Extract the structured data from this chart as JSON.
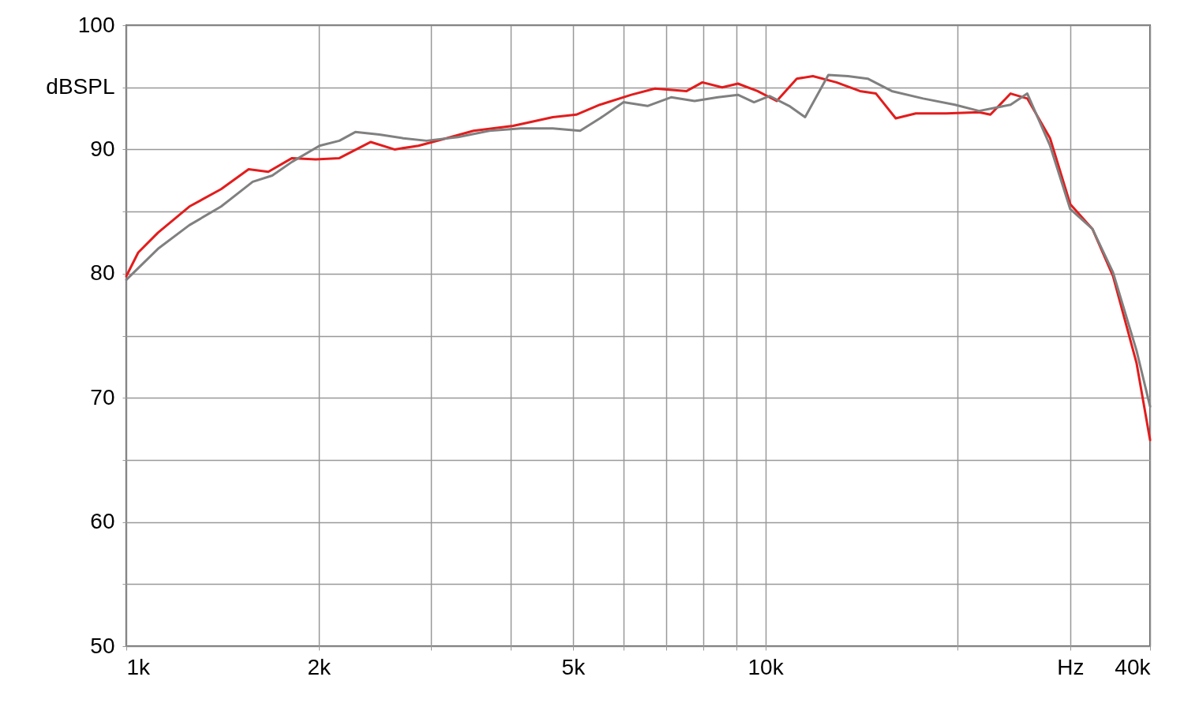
{
  "chart_data": {
    "type": "line",
    "log": "x",
    "grid": true,
    "legend": false,
    "marker": "none",
    "line_style": "solid",
    "xlim": [
      1000,
      40000
    ],
    "xticks": [
      {
        "value": 1000,
        "label": "1k"
      },
      {
        "value": 2000,
        "label": "2k"
      },
      {
        "value": 3000,
        "label": null
      },
      {
        "value": 4000,
        "label": null
      },
      {
        "value": 5000,
        "label": "5k"
      },
      {
        "value": 6000,
        "label": null
      },
      {
        "value": 7000,
        "label": null
      },
      {
        "value": 8000,
        "label": null
      },
      {
        "value": 9000,
        "label": null
      },
      {
        "value": 10000,
        "label": "10k"
      },
      {
        "value": 20000,
        "label": null
      },
      {
        "value": 30000,
        "label": "Hz"
      },
      {
        "value": 40000,
        "label": "40k"
      }
    ],
    "ylim": [
      50,
      100
    ],
    "yticks": [
      50,
      {
        "value": 55,
        "label": null
      },
      60,
      {
        "value": 65,
        "label": null
      },
      70,
      {
        "value": 75,
        "label": null
      },
      80,
      {
        "value": 85,
        "label": null
      },
      90,
      {
        "value": 95,
        "label": "dBSPL"
      },
      100
    ],
    "series": [
      {
        "color": "#e31c1c",
        "x": [
          1000,
          1044,
          1121,
          1255,
          1407,
          1554,
          1668,
          1817,
          1979,
          2155,
          2413,
          2629,
          2865,
          3120,
          3495,
          4030,
          4650,
          5060,
          5510,
          6170,
          6720,
          7530,
          7970,
          8560,
          9060,
          9720,
          10420,
          11200,
          11870,
          12920,
          14060,
          14900,
          16000,
          17200,
          19200,
          21600,
          22500,
          24200,
          25700,
          27900,
          30000,
          32500,
          35000,
          38100,
          40000
        ],
        "values": [
          79.8,
          81.7,
          83.3,
          85.4,
          86.8,
          88.4,
          88.2,
          89.3,
          89.2,
          89.3,
          90.6,
          90.0,
          90.3,
          90.8,
          91.5,
          91.9,
          92.6,
          92.8,
          93.6,
          94.4,
          94.9,
          94.7,
          95.4,
          95.0,
          95.3,
          94.7,
          93.9,
          95.7,
          95.9,
          95.4,
          94.7,
          94.5,
          92.5,
          92.9,
          92.9,
          93.0,
          92.8,
          94.5,
          94.1,
          90.9,
          85.6,
          83.6,
          79.8,
          72.8,
          66.6
        ]
      },
      {
        "color": "#808080",
        "x": [
          1000,
          1121,
          1255,
          1407,
          1577,
          1692,
          1817,
          2006,
          2155,
          2282,
          2488,
          2713,
          2950,
          3305,
          3700,
          4140,
          4650,
          5130,
          5510,
          6000,
          6540,
          7120,
          7750,
          8430,
          9060,
          9600,
          10160,
          10900,
          11540,
          12550,
          13470,
          14460,
          15770,
          17660,
          19800,
          21600,
          24200,
          25700,
          27900,
          30000,
          32500,
          35000,
          38100,
          40000
        ],
        "values": [
          79.5,
          82.0,
          83.9,
          85.4,
          87.4,
          87.9,
          89.0,
          90.3,
          90.7,
          91.4,
          91.2,
          90.9,
          90.7,
          91.0,
          91.5,
          91.7,
          91.7,
          91.5,
          92.5,
          93.8,
          93.5,
          94.2,
          93.9,
          94.2,
          94.4,
          93.8,
          94.3,
          93.5,
          92.6,
          96.0,
          95.9,
          95.7,
          94.7,
          94.1,
          93.6,
          93.1,
          93.6,
          94.5,
          90.3,
          85.2,
          83.6,
          80.1,
          73.8,
          69.3
        ]
      }
    ]
  }
}
